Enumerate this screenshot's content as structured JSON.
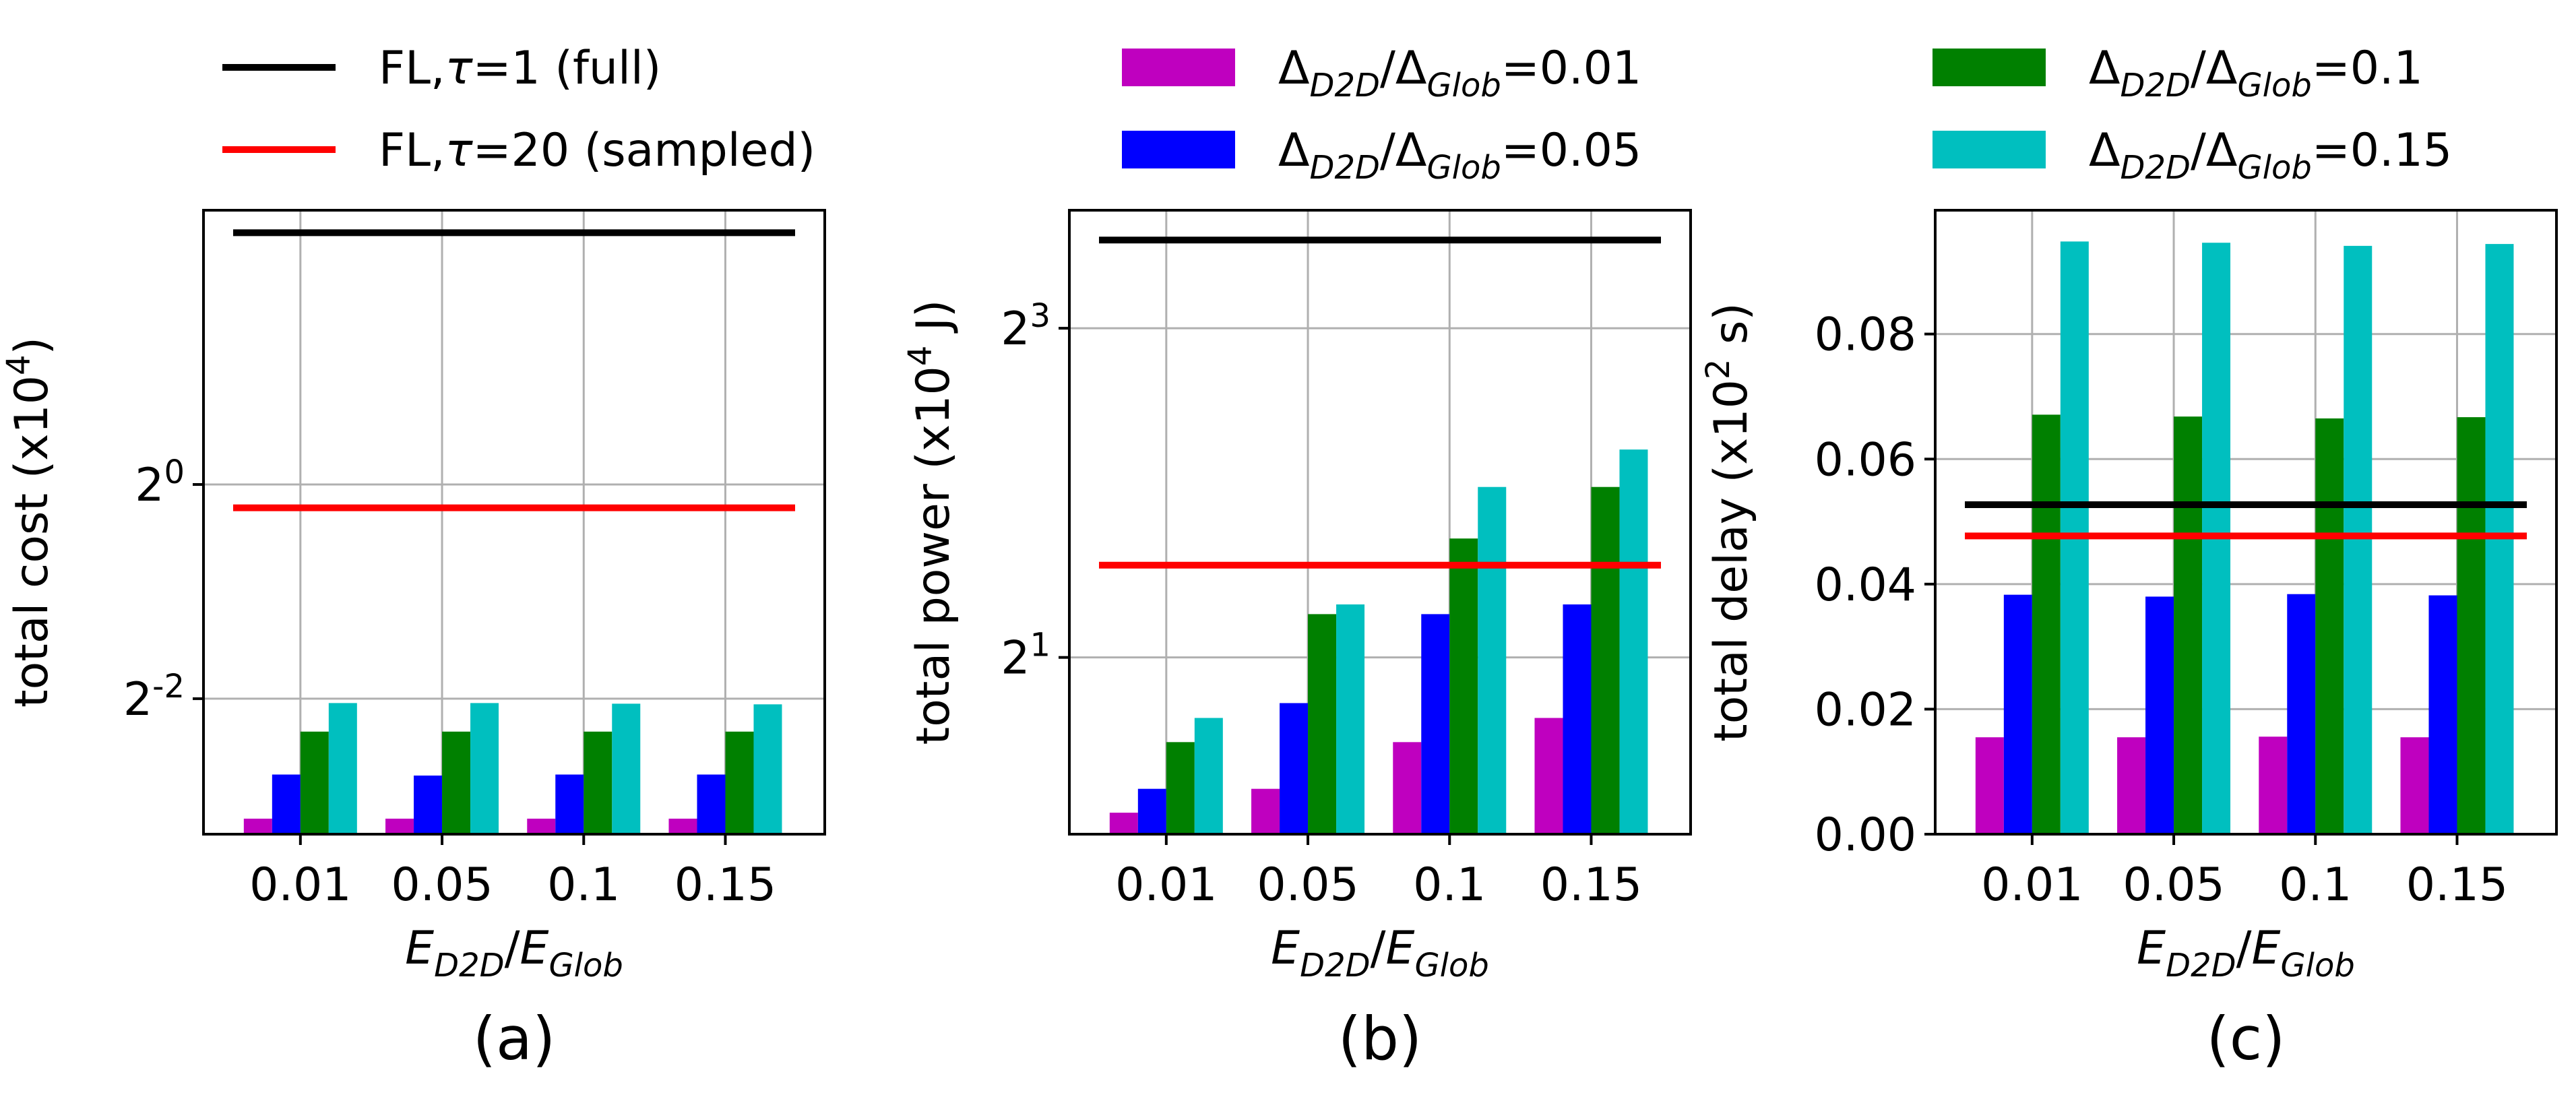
{
  "legend": {
    "lines": [
      {
        "label": "FL,τ=1 (full)",
        "color": "#000000"
      },
      {
        "label": "FL,τ=20 (sampled)",
        "color": "#ff0000"
      }
    ],
    "bars": [
      {
        "label": "ΔD2D/ΔGlob=0.01",
        "color": "#bf00bf"
      },
      {
        "label": "ΔD2D/ΔGlob=0.05",
        "color": "#0000ff"
      },
      {
        "label": "ΔD2D/ΔGlob=0.1",
        "color": "#008000"
      },
      {
        "label": "ΔD2D/ΔGlob=0.15",
        "color": "#00bfbf"
      }
    ]
  },
  "chart_data": [
    {
      "type": "bar",
      "caption": "(a)",
      "xlabel": "E_D2D/E_Glob",
      "ylabel": "total cost (x10^4)",
      "yscale": "log2",
      "ylim": [
        0.104,
        5.9
      ],
      "yticks": [
        {
          "value": 0.25,
          "label": "2^-2"
        },
        {
          "value": 1,
          "label": "2^0"
        }
      ],
      "grid": true,
      "categories": [
        "0.01",
        "0.05",
        "0.1",
        "0.15"
      ],
      "series": [
        {
          "name": "ΔD2D/ΔGlob=0.01",
          "values": [
            0.115,
            0.115,
            0.115,
            0.115
          ]
        },
        {
          "name": "ΔD2D/ΔGlob=0.05",
          "values": [
            0.153,
            0.152,
            0.153,
            0.153
          ]
        },
        {
          "name": "ΔD2D/ΔGlob=0.1",
          "values": [
            0.202,
            0.202,
            0.202,
            0.202
          ]
        },
        {
          "name": "ΔD2D/ΔGlob=0.15",
          "values": [
            0.243,
            0.243,
            0.242,
            0.241
          ]
        }
      ],
      "hlines": [
        {
          "name": "FL,τ=1 (full)",
          "value": 5.1
        },
        {
          "name": "FL,τ=20 (sampled)",
          "value": 0.86
        }
      ]
    },
    {
      "type": "bar",
      "caption": "(b)",
      "xlabel": "E_D2D/E_Glob",
      "ylabel": "total power (x10^4 J)",
      "yscale": "log2",
      "ylim": [
        0.95,
        13.15
      ],
      "yticks": [
        {
          "value": 2,
          "label": "2^1"
        },
        {
          "value": 8,
          "label": "2^3"
        }
      ],
      "grid": true,
      "categories": [
        "0.01",
        "0.05",
        "0.1",
        "0.15"
      ],
      "series": [
        {
          "name": "ΔD2D/ΔGlob=0.01",
          "values": [
            1.04,
            1.15,
            1.4,
            1.55
          ]
        },
        {
          "name": "ΔD2D/ΔGlob=0.05",
          "values": [
            1.15,
            1.65,
            2.4,
            2.5
          ]
        },
        {
          "name": "ΔD2D/ΔGlob=0.1",
          "values": [
            1.4,
            2.4,
            3.3,
            4.1
          ]
        },
        {
          "name": "ΔD2D/ΔGlob=0.15",
          "values": [
            1.55,
            2.5,
            4.1,
            4.8
          ]
        }
      ],
      "hlines": [
        {
          "name": "FL,τ=1 (full)",
          "value": 11.6
        },
        {
          "name": "FL,τ=20 (sampled)",
          "value": 2.95
        }
      ]
    },
    {
      "type": "bar",
      "caption": "(c)",
      "xlabel": "E_D2D/E_Glob",
      "ylabel": "total delay (x10^2 s)",
      "yscale": "linear",
      "ylim": [
        0,
        0.0998
      ],
      "yticks": [
        {
          "value": 0,
          "label": "0.00"
        },
        {
          "value": 0.02,
          "label": "0.02"
        },
        {
          "value": 0.04,
          "label": "0.04"
        },
        {
          "value": 0.06,
          "label": "0.06"
        },
        {
          "value": 0.08,
          "label": "0.08"
        }
      ],
      "grid": true,
      "categories": [
        "0.01",
        "0.05",
        "0.1",
        "0.15"
      ],
      "series": [
        {
          "name": "ΔD2D/ΔGlob=0.01",
          "values": [
            0.0155,
            0.0155,
            0.0156,
            0.0155
          ]
        },
        {
          "name": "ΔD2D/ΔGlob=0.05",
          "values": [
            0.0383,
            0.038,
            0.0384,
            0.0382
          ]
        },
        {
          "name": "ΔD2D/ΔGlob=0.1",
          "values": [
            0.0671,
            0.0668,
            0.0665,
            0.0667
          ]
        },
        {
          "name": "ΔD2D/ΔGlob=0.15",
          "values": [
            0.0948,
            0.0946,
            0.0941,
            0.0944
          ]
        }
      ],
      "hlines": [
        {
          "name": "FL,τ=1 (full)",
          "value": 0.0527
        },
        {
          "name": "FL,τ=20 (sampled)",
          "value": 0.0477
        }
      ]
    }
  ]
}
